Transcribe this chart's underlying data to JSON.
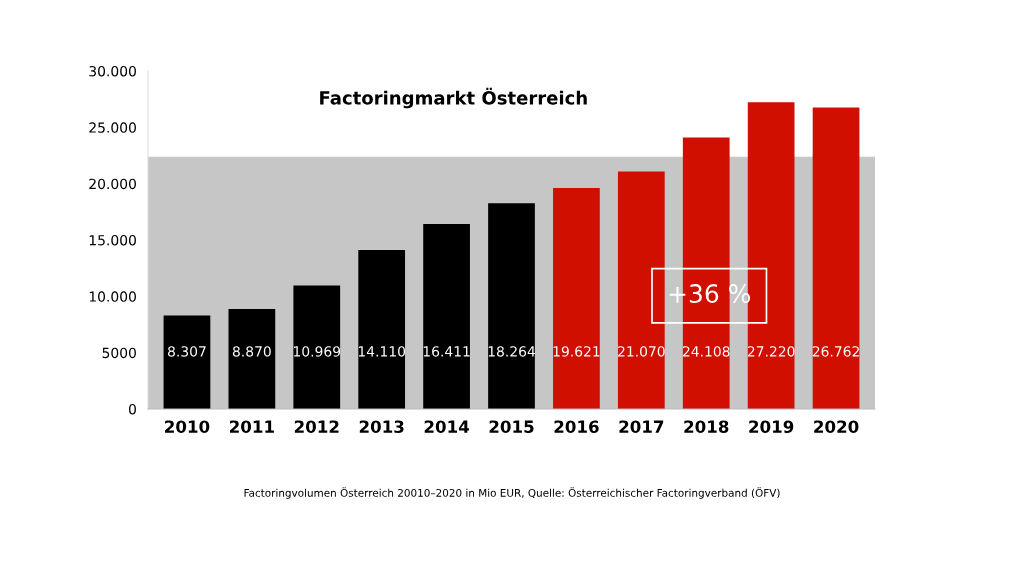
{
  "chart_data": {
    "type": "bar",
    "title": "Factoringmarkt Österreich",
    "categories": [
      "2010",
      "2011",
      "2012",
      "2013",
      "2014",
      "2015",
      "2016",
      "2017",
      "2018",
      "2019",
      "2020"
    ],
    "values": [
      8307,
      8870,
      10969,
      14110,
      16411,
      18264,
      19621,
      21070,
      24108,
      27220,
      26762
    ],
    "colors": [
      "#000000",
      "#000000",
      "#000000",
      "#000000",
      "#000000",
      "#000000",
      "#d10f00",
      "#d10f00",
      "#d10f00",
      "#d10f00",
      "#d10f00"
    ],
    "value_labels": [
      "8.307",
      "8.870",
      "10.969",
      "14.110",
      "16.411",
      "18.264",
      "19.621",
      "21.070",
      "24.108",
      "27.220",
      "26.762"
    ],
    "ylim": [
      0,
      30000
    ],
    "yticks": [
      0,
      5000,
      {
        "value": 10000,
        "label": "10.000"
      },
      {
        "value": 15000,
        "label": "15.000"
      },
      {
        "value": 20000,
        "label": "20.000"
      },
      {
        "value": 25000,
        "label": "25.000"
      },
      {
        "value": 30000,
        "label": "30.000"
      }
    ],
    "bands": [
      {
        "axis": "y",
        "from": 0,
        "to": 22400,
        "color": "#c6c6c6"
      }
    ],
    "annotations": [
      "+36 %",
      "Factoringvolumen Österreich 20010–2020 in Mio EUR, Quelle: Österreichischer Factoringverband (ÖFV)"
    ],
    "grid": false,
    "legend": false
  }
}
